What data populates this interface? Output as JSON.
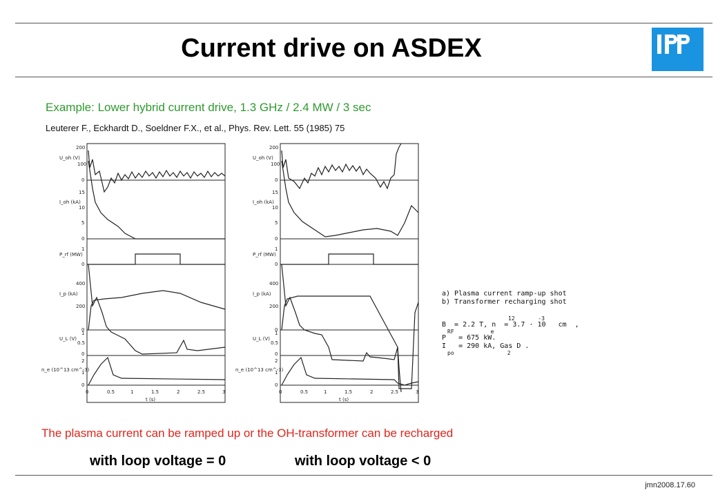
{
  "slide": {
    "title": "Current drive on ASDEX",
    "example": "Example: Lower hybrid current drive, 1.3 GHz / 2.4 MW / 3 sec",
    "reference": "Leuterer F., Eckhardt D., Soeldner F.X., et al., Phys. Rev. Lett. 55 (1985) 75",
    "note": "The plasma current can be ramped up or the OH-transformer can be recharged",
    "caption_left": "with loop voltage = 0",
    "caption_right": "with loop voltage < 0",
    "footer": "jmn2008.17.60",
    "logo_text": "IPP",
    "accent_color": "#1a94e0",
    "note_color": "#e0251b",
    "example_color": "#2f9a2f"
  },
  "legend": {
    "line_a": "a) Plasma current ramp-up shot",
    "line_b": "b) Transformer recharging shot",
    "line_1": "B  = 2.2 T, n  = 3.7 · 10   cm  ,",
    "line_1_sup": "12       -3",
    "line_2": "P   = 675 kW.",
    "line_3": "I   = 290 kA, Gas D .",
    "sub_2": "RF           e",
    "sub_3": "po                2"
  },
  "figure": {
    "panel_labels": [
      "U_oh (V)",
      "I_oh (kA)",
      "P_rf (MW)",
      "I_p (kA)",
      "U_L (V)",
      "n_e (10^13 cm^-3)"
    ],
    "x_tick_labels": [
      "0",
      "0.5",
      "1",
      "1.5",
      "2",
      "2.5",
      "3"
    ],
    "x_axis_label": "t (s)",
    "y_ticks_uoh": [
      "200",
      "100",
      "0"
    ],
    "y_ticks_ioh": [
      "15",
      "10",
      "5",
      "0"
    ],
    "y_ticks_prf": [
      "1",
      "0"
    ],
    "y_ticks_ip": [
      "400",
      "200",
      "0"
    ],
    "y_ticks_ul": [
      "1",
      "0.5",
      "0"
    ],
    "y_ticks_ne": [
      "2",
      "1",
      "0"
    ]
  },
  "chart_data": [
    {
      "type": "line",
      "x_label": "t (s)",
      "xlim": [
        0,
        3
      ],
      "series": [
        {
          "name": "I_p (kA)",
          "x": [
            0,
            0.1,
            0.2,
            0.4,
            1.1,
            2.0,
            3.0
          ],
          "y": [
            0,
            250,
            280,
            280,
            290,
            320,
            250
          ]
        },
        {
          "name": "I_oh (kA)",
          "x": [
            0,
            0.1,
            0.3,
            0.6,
            1.0,
            1.4,
            3.0
          ],
          "y": [
            12,
            9,
            6,
            3,
            1,
            0,
            0
          ]
        },
        {
          "name": "P_rf (MW)",
          "x": [
            0,
            1.0,
            1.0,
            2.2,
            2.2,
            3.0
          ],
          "y": [
            0,
            0,
            0.55,
            0.55,
            0,
            0
          ]
        },
        {
          "name": "U_L (V)",
          "x": [
            0,
            0.1,
            0.3,
            0.5,
            1.0,
            1.2,
            2.0,
            2.2,
            3.0
          ],
          "y": [
            1,
            0.6,
            0.4,
            0.3,
            0.2,
            0,
            0,
            0.15,
            0.05
          ]
        },
        {
          "name": "n_e (10^13 cm^-3)",
          "x": [
            0,
            0.3,
            0.6,
            0.7,
            3.0
          ],
          "y": [
            0,
            1.2,
            1.8,
            0.3,
            0.2
          ]
        }
      ]
    },
    {
      "type": "line",
      "x_label": "t (s)",
      "xlim": [
        0,
        3
      ],
      "series": [
        {
          "name": "I_p (kA)",
          "x": [
            0,
            0.1,
            0.3,
            0.5,
            2.0,
            2.5,
            2.55,
            2.9,
            3.0
          ],
          "y": [
            0,
            250,
            280,
            290,
            290,
            180,
            0,
            0,
            200
          ]
        },
        {
          "name": "I_oh (kA)",
          "x": [
            0,
            0.1,
            0.3,
            0.7,
            1.0,
            2.0,
            2.3,
            2.6,
            3.0
          ],
          "y": [
            12,
            9,
            6,
            3,
            1,
            2,
            2.5,
            1,
            5
          ]
        },
        {
          "name": "P_rf (MW)",
          "x": [
            0,
            1.0,
            1.0,
            2.2,
            2.2,
            3.0
          ],
          "y": [
            0,
            0,
            0.55,
            0.55,
            0,
            0
          ]
        },
        {
          "name": "U_L (V)",
          "x": [
            0,
            0.1,
            0.3,
            0.5,
            1.0,
            1.2,
            2.0,
            2.3,
            2.45,
            2.5
          ],
          "y": [
            1,
            0.6,
            0.4,
            0.3,
            0.3,
            -0.1,
            -0.1,
            -0.05,
            0.1,
            -0.3
          ]
        },
        {
          "name": "n_e (10^13 cm^-3)",
          "x": [
            0,
            0.3,
            0.6,
            0.7,
            2.5,
            2.6,
            3.0
          ],
          "y": [
            0,
            1.2,
            1.8,
            0.3,
            0.2,
            0,
            0.1
          ]
        }
      ]
    }
  ]
}
